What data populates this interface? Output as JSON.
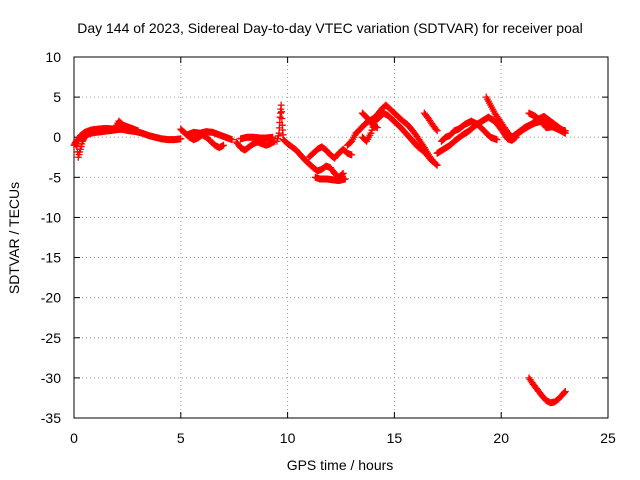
{
  "chart_data": {
    "type": "scatter",
    "title": "Day 144 of 2023, Sidereal Day-to-day VTEC variation (SDTVAR) for receiver poal",
    "xlabel": "GPS time / hours",
    "ylabel": "SDTVAR / TECUs",
    "xlim": [
      0,
      25
    ],
    "ylim": [
      -35,
      10
    ],
    "xticks": [
      0,
      5,
      10,
      15,
      20,
      25
    ],
    "yticks": [
      10,
      5,
      0,
      -5,
      -10,
      -15,
      -20,
      -25,
      -30,
      -35
    ],
    "grid": true,
    "marker": "+",
    "series": [
      {
        "name": "SDTVAR",
        "color": "#ff0000",
        "segments": [
          [
            [
              0.0,
              -1.0
            ],
            [
              0.1,
              -0.5
            ],
            [
              0.2,
              -2.5
            ],
            [
              0.3,
              -1.5
            ],
            [
              0.4,
              -0.5
            ],
            [
              0.5,
              0.0
            ],
            [
              0.6,
              0.3
            ],
            [
              0.8,
              0.5
            ],
            [
              1.0,
              0.6
            ],
            [
              1.3,
              0.7
            ],
            [
              1.6,
              0.8
            ],
            [
              1.9,
              0.9
            ],
            [
              2.2,
              1.0
            ],
            [
              2.4,
              0.9
            ],
            [
              2.6,
              0.8
            ],
            [
              2.9,
              0.7
            ],
            [
              3.2,
              0.5
            ],
            [
              3.5,
              0.2
            ],
            [
              3.8,
              0.0
            ],
            [
              4.1,
              -0.2
            ],
            [
              4.4,
              -0.3
            ],
            [
              4.7,
              -0.3
            ],
            [
              5.0,
              -0.2
            ]
          ],
          [
            [
              0.1,
              -1.0
            ],
            [
              0.2,
              -0.3
            ],
            [
              0.3,
              0.2
            ],
            [
              0.5,
              0.6
            ],
            [
              0.8,
              0.9
            ],
            [
              1.1,
              1.0
            ],
            [
              1.5,
              1.1
            ],
            [
              1.9,
              1.0
            ],
            [
              2.1,
              2.0
            ],
            [
              2.3,
              1.5
            ],
            [
              2.6,
              1.2
            ],
            [
              3.0,
              0.8
            ]
          ],
          [
            [
              5.0,
              1.0
            ],
            [
              5.2,
              0.5
            ],
            [
              5.4,
              0.0
            ],
            [
              5.6,
              -0.3
            ],
            [
              5.8,
              -0.1
            ],
            [
              6.0,
              0.3
            ],
            [
              6.2,
              0.0
            ],
            [
              6.4,
              -0.5
            ],
            [
              6.6,
              -1.0
            ],
            [
              6.8,
              -1.3
            ],
            [
              7.0,
              -1.0
            ]
          ],
          [
            [
              5.3,
              0.3
            ],
            [
              5.6,
              0.6
            ],
            [
              5.9,
              0.5
            ],
            [
              6.2,
              0.7
            ],
            [
              6.5,
              0.6
            ],
            [
              6.8,
              0.3
            ],
            [
              7.1,
              0.0
            ],
            [
              7.4,
              -0.3
            ]
          ],
          [
            [
              7.6,
              -0.6
            ],
            [
              7.8,
              -1.3
            ],
            [
              8.0,
              -1.6
            ],
            [
              8.2,
              -1.2
            ],
            [
              8.4,
              -0.8
            ],
            [
              8.6,
              -0.6
            ],
            [
              8.8,
              -0.8
            ],
            [
              9.0,
              -1.0
            ],
            [
              9.2,
              -0.8
            ],
            [
              9.4,
              -0.5
            ]
          ],
          [
            [
              7.8,
              -0.2
            ],
            [
              8.1,
              0.0
            ],
            [
              8.4,
              0.0
            ],
            [
              8.7,
              -0.1
            ],
            [
              9.0,
              -0.1
            ],
            [
              9.3,
              0.0
            ]
          ],
          [
            [
              9.5,
              -0.5
            ],
            [
              9.6,
              0.5
            ],
            [
              9.65,
              2.5
            ],
            [
              9.7,
              4.0
            ],
            [
              9.75,
              1.5
            ],
            [
              9.8,
              -0.3
            ],
            [
              10.0,
              -0.8
            ],
            [
              10.2,
              -1.2
            ],
            [
              10.4,
              -1.6
            ],
            [
              10.6,
              -2.2
            ],
            [
              10.8,
              -2.8
            ],
            [
              11.0,
              -3.3
            ],
            [
              11.2,
              -3.8
            ],
            [
              11.4,
              -4.2
            ],
            [
              11.6,
              -4.0
            ],
            [
              11.8,
              -3.6
            ],
            [
              12.0,
              -3.8
            ],
            [
              12.2,
              -4.5
            ],
            [
              12.4,
              -5.0
            ],
            [
              12.6,
              -4.5
            ]
          ],
          [
            [
              11.0,
              -2.5
            ],
            [
              11.2,
              -2.0
            ],
            [
              11.4,
              -1.5
            ],
            [
              11.6,
              -1.2
            ],
            [
              11.8,
              -1.6
            ],
            [
              12.0,
              -2.2
            ],
            [
              12.2,
              -2.6
            ],
            [
              12.4,
              -2.0
            ],
            [
              12.6,
              -1.5
            ],
            [
              12.8,
              -2.0
            ],
            [
              13.0,
              -2.2
            ]
          ],
          [
            [
              11.3,
              -5.0
            ],
            [
              11.5,
              -5.2
            ],
            [
              11.8,
              -5.2
            ],
            [
              12.1,
              -5.3
            ],
            [
              12.4,
              -5.4
            ],
            [
              12.7,
              -5.2
            ]
          ],
          [
            [
              12.8,
              -1.0
            ],
            [
              13.0,
              -0.5
            ],
            [
              13.2,
              0.5
            ],
            [
              13.4,
              1.0
            ],
            [
              13.6,
              1.6
            ],
            [
              13.8,
              2.0
            ],
            [
              14.0,
              2.3
            ],
            [
              14.2,
              2.8
            ],
            [
              14.4,
              3.5
            ],
            [
              14.6,
              4.0
            ],
            [
              14.8,
              3.5
            ],
            [
              15.0,
              3.0
            ],
            [
              15.2,
              2.5
            ],
            [
              15.4,
              2.0
            ],
            [
              15.6,
              1.6
            ],
            [
              15.8,
              1.0
            ],
            [
              16.0,
              0.3
            ],
            [
              16.2,
              -0.5
            ],
            [
              16.4,
              -1.3
            ],
            [
              16.6,
              -2.2
            ],
            [
              16.8,
              -3.0
            ],
            [
              17.0,
              -3.5
            ]
          ],
          [
            [
              13.5,
              0.0
            ],
            [
              13.7,
              -0.5
            ],
            [
              13.9,
              0.5
            ],
            [
              14.1,
              2.0
            ],
            [
              14.3,
              2.5
            ],
            [
              14.5,
              3.0
            ],
            [
              14.7,
              2.7
            ],
            [
              14.9,
              2.2
            ],
            [
              15.1,
              1.7
            ],
            [
              15.3,
              1.2
            ],
            [
              15.5,
              0.6
            ],
            [
              15.7,
              0.0
            ],
            [
              15.9,
              -0.6
            ],
            [
              16.1,
              -1.2
            ],
            [
              16.3,
              -1.6
            ],
            [
              16.5,
              -2.1
            ],
            [
              16.7,
              -2.8
            ],
            [
              16.9,
              -3.2
            ]
          ],
          [
            [
              13.5,
              3.0
            ],
            [
              13.8,
              2.2
            ],
            [
              14.0,
              1.5
            ],
            [
              14.2,
              1.2
            ]
          ],
          [
            [
              16.4,
              3.0
            ],
            [
              16.6,
              2.3
            ],
            [
              16.8,
              1.5
            ],
            [
              17.0,
              0.8
            ]
          ],
          [
            [
              17.0,
              -2.0
            ],
            [
              17.3,
              -1.5
            ],
            [
              17.6,
              -1.0
            ],
            [
              17.9,
              -0.3
            ],
            [
              18.2,
              0.3
            ],
            [
              18.5,
              0.8
            ],
            [
              18.8,
              1.5
            ],
            [
              19.1,
              2.0
            ],
            [
              19.4,
              2.5
            ],
            [
              19.7,
              2.0
            ],
            [
              20.0,
              1.0
            ],
            [
              20.3,
              -0.2
            ],
            [
              20.5,
              -0.4
            ],
            [
              20.7,
              0.0
            ]
          ],
          [
            [
              17.2,
              -0.5
            ],
            [
              17.4,
              0.0
            ],
            [
              17.6,
              0.2
            ],
            [
              17.8,
              0.8
            ],
            [
              18.0,
              1.0
            ],
            [
              18.3,
              1.6
            ],
            [
              18.6,
              2.0
            ],
            [
              18.9,
              1.6
            ],
            [
              19.2,
              0.8
            ],
            [
              19.5,
              0.0
            ],
            [
              19.8,
              -0.3
            ]
          ],
          [
            [
              19.3,
              5.0
            ],
            [
              19.5,
              4.0
            ],
            [
              19.7,
              3.0
            ],
            [
              19.9,
              2.2
            ],
            [
              20.1,
              1.4
            ],
            [
              20.3,
              0.6
            ],
            [
              20.5,
              0.0
            ]
          ],
          [
            [
              20.5,
              0.0
            ],
            [
              20.8,
              0.6
            ],
            [
              21.1,
              1.2
            ],
            [
              21.4,
              1.6
            ],
            [
              21.7,
              2.2
            ],
            [
              22.0,
              2.6
            ],
            [
              22.3,
              2.0
            ],
            [
              22.6,
              1.4
            ],
            [
              22.9,
              0.8
            ]
          ],
          [
            [
              20.4,
              -0.2
            ],
            [
              20.7,
              0.3
            ],
            [
              21.0,
              0.9
            ],
            [
              21.3,
              1.4
            ],
            [
              21.6,
              1.8
            ],
            [
              21.9,
              2.0
            ],
            [
              22.2,
              1.6
            ],
            [
              22.5,
              1.2
            ],
            [
              22.8,
              0.8
            ],
            [
              23.0,
              0.5
            ]
          ],
          [
            [
              21.3,
              3.0
            ],
            [
              21.6,
              2.6
            ],
            [
              21.9,
              1.9
            ],
            [
              22.1,
              1.2
            ],
            [
              22.4,
              1.3
            ],
            [
              22.7,
              1.0
            ],
            [
              23.0,
              0.8
            ]
          ],
          [
            [
              21.3,
              -30.0
            ],
            [
              21.5,
              -30.8
            ],
            [
              21.7,
              -31.5
            ],
            [
              21.9,
              -32.2
            ],
            [
              22.1,
              -32.8
            ],
            [
              22.3,
              -33.1
            ],
            [
              22.5,
              -33.0
            ],
            [
              22.7,
              -32.6
            ],
            [
              22.9,
              -32.0
            ],
            [
              23.0,
              -31.7
            ]
          ]
        ]
      }
    ]
  }
}
